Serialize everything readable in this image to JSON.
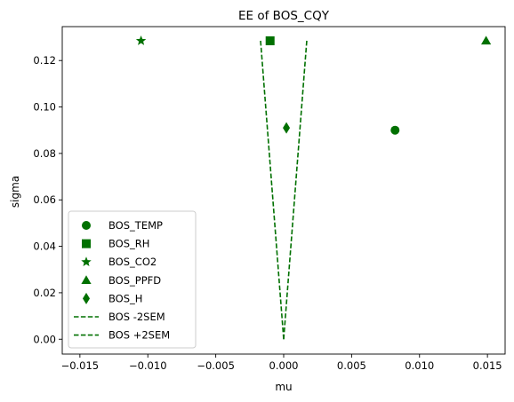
{
  "chart_data": {
    "type": "scatter",
    "title": "EE of BOS_CQY",
    "xlabel": "mu",
    "ylabel": "sigma",
    "xlim": [
      -0.0163,
      0.0163
    ],
    "ylim": [
      -0.0064,
      0.1346
    ],
    "xticks": [
      -0.015,
      -0.01,
      -0.005,
      0.0,
      0.005,
      0.01,
      0.015
    ],
    "xtick_labels": [
      "−0.015",
      "−0.010",
      "−0.005",
      "0.000",
      "0.005",
      "0.010",
      "0.015"
    ],
    "yticks": [
      0.0,
      0.02,
      0.04,
      0.06,
      0.08,
      0.1,
      0.12
    ],
    "ytick_labels": [
      "0.00",
      "0.02",
      "0.04",
      "0.06",
      "0.08",
      "0.10",
      "0.12"
    ],
    "grid": false,
    "legend_position": "lower-left",
    "color": "#007000",
    "series": [
      {
        "name": "BOS_TEMP",
        "marker": "circle",
        "points": [
          {
            "x": 0.0082,
            "y": 0.09
          }
        ]
      },
      {
        "name": "BOS_RH",
        "marker": "square",
        "points": [
          {
            "x": -0.001,
            "y": 0.1285
          }
        ]
      },
      {
        "name": "BOS_CO2",
        "marker": "star",
        "points": [
          {
            "x": -0.0105,
            "y": 0.1285
          }
        ]
      },
      {
        "name": "BOS_PPFD",
        "marker": "triangle",
        "points": [
          {
            "x": 0.0149,
            "y": 0.1285
          }
        ]
      },
      {
        "name": "BOS_H",
        "marker": "diamond",
        "points": [
          {
            "x": 0.0002,
            "y": 0.091
          }
        ]
      }
    ],
    "lines": [
      {
        "name": "BOS -2SEM",
        "style": "dashed",
        "points": [
          {
            "x": 0.0,
            "y": 0.0
          },
          {
            "x": -0.0017,
            "y": 0.1285
          }
        ]
      },
      {
        "name": "BOS +2SEM",
        "style": "dashed",
        "points": [
          {
            "x": 0.0,
            "y": 0.0
          },
          {
            "x": 0.0017,
            "y": 0.1285
          }
        ]
      }
    ]
  }
}
